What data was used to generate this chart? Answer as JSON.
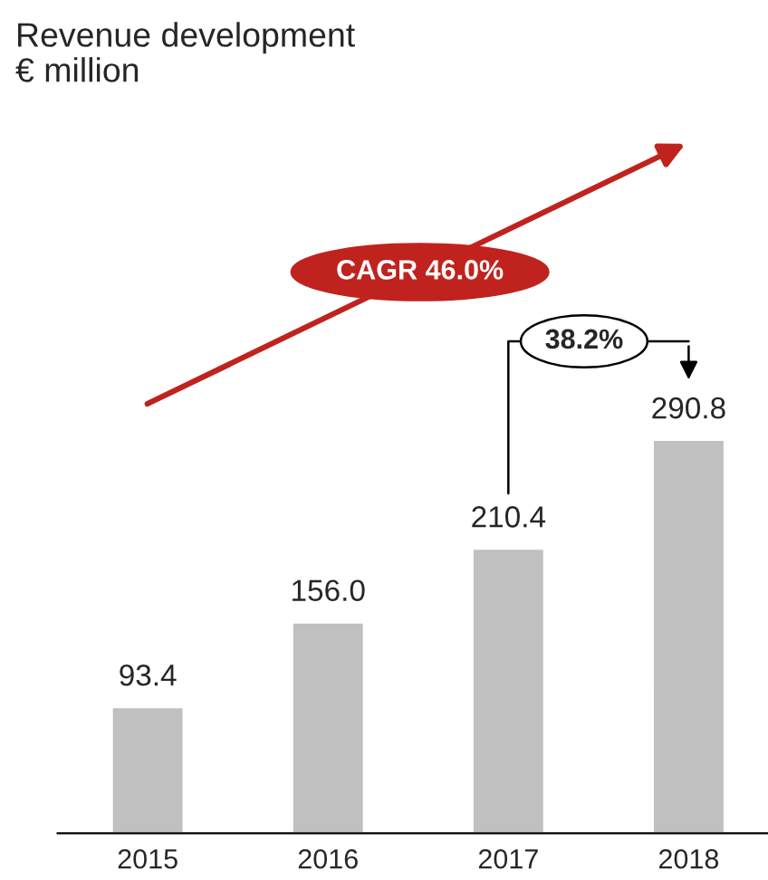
{
  "chart_data": {
    "type": "bar",
    "title": "Revenue development",
    "subtitle": "€ million",
    "categories": [
      "2015",
      "2016",
      "2017",
      "2018"
    ],
    "values": [
      93.4,
      156.0,
      210.4,
      290.8
    ],
    "value_labels": [
      "93.4",
      "156.0",
      "210.4",
      "290.8"
    ],
    "color": "#c0c0c0",
    "annotations": [
      "CAGR 46.0%",
      "38.2%"
    ]
  }
}
